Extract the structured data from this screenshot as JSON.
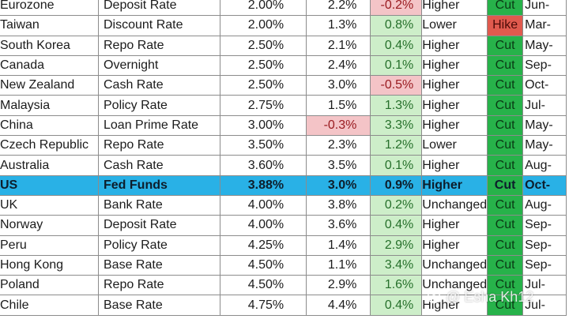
{
  "table": {
    "rows": [
      {
        "country": "Eurozone",
        "rate": "Deposit Rate",
        "level": "2.00%",
        "real": "2.2%",
        "real_flag": "",
        "spread": "-0.2%",
        "spread_flag": "neg",
        "direction": "Higher",
        "action": "Cut",
        "date": "Jun-"
      },
      {
        "country": "Taiwan",
        "rate": "Discount Rate",
        "level": "2.00%",
        "real": "1.3%",
        "real_flag": "",
        "spread": "0.8%",
        "spread_flag": "pos",
        "direction": "Lower",
        "action": "Hike",
        "date": "Mar-"
      },
      {
        "country": "South Korea",
        "rate": "Repo Rate",
        "level": "2.50%",
        "real": "2.1%",
        "real_flag": "",
        "spread": "0.4%",
        "spread_flag": "pos",
        "direction": "Higher",
        "action": "Cut",
        "date": "May-"
      },
      {
        "country": "Canada",
        "rate": "Overnight",
        "level": "2.50%",
        "real": "2.4%",
        "real_flag": "",
        "spread": "0.1%",
        "spread_flag": "pos",
        "direction": "Higher",
        "action": "Cut",
        "date": "Sep-"
      },
      {
        "country": "New Zealand",
        "rate": "Cash Rate",
        "level": "2.50%",
        "real": "3.0%",
        "real_flag": "",
        "spread": "-0.5%",
        "spread_flag": "neg",
        "direction": "Higher",
        "action": "Cut",
        "date": "Oct-"
      },
      {
        "country": "Malaysia",
        "rate": "Policy Rate",
        "level": "2.75%",
        "real": "1.5%",
        "real_flag": "",
        "spread": "1.3%",
        "spread_flag": "pos",
        "direction": "Higher",
        "action": "Cut",
        "date": "Jul-"
      },
      {
        "country": "China",
        "rate": "Loan Prime Rate",
        "level": "3.00%",
        "real": "-0.3%",
        "real_flag": "neg",
        "spread": "3.3%",
        "spread_flag": "pos",
        "direction": "Higher",
        "action": "Cut",
        "date": "May-"
      },
      {
        "country": "Czech Republic",
        "rate": "Repo Rate",
        "level": "3.50%",
        "real": "2.3%",
        "real_flag": "",
        "spread": "1.2%",
        "spread_flag": "pos",
        "direction": "Lower",
        "action": "Cut",
        "date": "May-"
      },
      {
        "country": "Australia",
        "rate": "Cash Rate",
        "level": "3.60%",
        "real": "3.5%",
        "real_flag": "",
        "spread": "0.1%",
        "spread_flag": "pos",
        "direction": "Higher",
        "action": "Cut",
        "date": "Aug-"
      },
      {
        "country": "US",
        "rate": "Fed Funds",
        "level": "3.88%",
        "real": "3.0%",
        "real_flag": "",
        "spread": "0.9%",
        "spread_flag": "",
        "direction": "Higher",
        "action": "Cut",
        "date": "Oct-",
        "highlight": true
      },
      {
        "country": "UK",
        "rate": "Bank Rate",
        "level": "4.00%",
        "real": "3.8%",
        "real_flag": "",
        "spread": "0.2%",
        "spread_flag": "pos",
        "direction": "Unchanged",
        "action": "Cut",
        "date": "Aug-"
      },
      {
        "country": "Norway",
        "rate": "Deposit Rate",
        "level": "4.00%",
        "real": "3.6%",
        "real_flag": "",
        "spread": "0.4%",
        "spread_flag": "pos",
        "direction": "Higher",
        "action": "Cut",
        "date": "Sep-"
      },
      {
        "country": "Peru",
        "rate": "Policy Rate",
        "level": "4.25%",
        "real": "1.4%",
        "real_flag": "",
        "spread": "2.9%",
        "spread_flag": "pos",
        "direction": "Higher",
        "action": "Cut",
        "date": "Sep-"
      },
      {
        "country": "Hong Kong",
        "rate": "Base Rate",
        "level": "4.50%",
        "real": "1.1%",
        "real_flag": "",
        "spread": "3.4%",
        "spread_flag": "pos",
        "direction": "Unchanged",
        "action": "Cut",
        "date": "Sep-"
      },
      {
        "country": "Poland",
        "rate": "Repo Rate",
        "level": "4.50%",
        "real": "2.9%",
        "real_flag": "",
        "spread": "1.6%",
        "spread_flag": "pos",
        "direction": "Unchanged",
        "action": "Cut",
        "date": "Jul-"
      },
      {
        "country": "Chile",
        "rate": "Base Rate",
        "level": "4.75%",
        "real": "4.4%",
        "real_flag": "",
        "spread": "0.4%",
        "spread_flag": "pos",
        "direction": "Higher",
        "action": "Cut",
        "date": "Jul-"
      }
    ]
  },
  "watermark": {
    "text": "@ Esha Kh12"
  },
  "colors": {
    "negative": "#f4c4c7",
    "positive": "#cdeec9",
    "cut": "#27b24a",
    "hike": "#e05a4e",
    "highlight": "#29b1e6"
  }
}
